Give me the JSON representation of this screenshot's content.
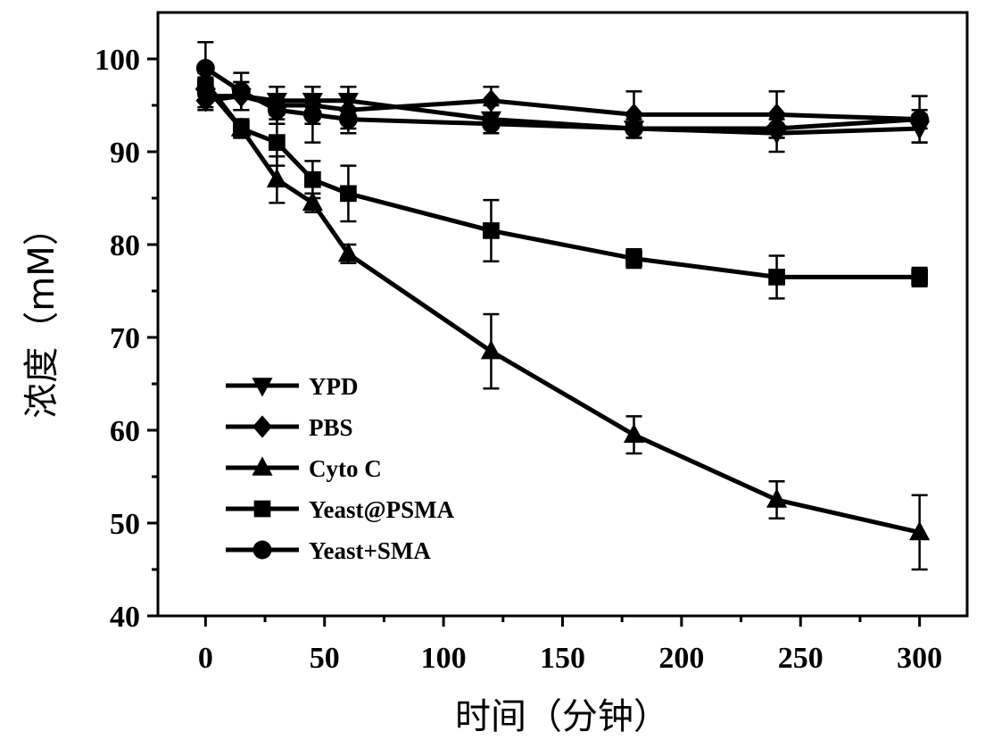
{
  "chart_data": {
    "type": "line",
    "title": "",
    "xlabel": "时间（分钟）",
    "ylabel": "浓度（mM）",
    "xlim": [
      -20,
      320
    ],
    "ylim": [
      40,
      105
    ],
    "xticks": [
      0,
      50,
      100,
      150,
      200,
      250,
      300
    ],
    "yticks": [
      40,
      50,
      60,
      70,
      80,
      90,
      100
    ],
    "grid": false,
    "legend_position": "bottom-left",
    "x": [
      0,
      15,
      30,
      45,
      60,
      120,
      180,
      240,
      300
    ],
    "series": [
      {
        "name": "YPD",
        "marker": "triangle-down",
        "values": [
          96.0,
          96.0,
          95.5,
          95.5,
          95.5,
          93.5,
          92.5,
          92.0,
          92.5
        ],
        "errors": [
          1.2,
          1.5,
          1.5,
          1.5,
          1.5,
          1.5,
          1.0,
          2.0,
          1.5
        ]
      },
      {
        "name": "PBS",
        "marker": "diamond",
        "values": [
          95.5,
          96.0,
          95.0,
          95.0,
          94.5,
          95.5,
          94.0,
          94.0,
          93.5
        ],
        "errors": [
          1.0,
          1.5,
          2.0,
          2.0,
          2.5,
          1.5,
          2.5,
          2.5,
          2.5
        ]
      },
      {
        "name": "Cyto C",
        "marker": "triangle-up",
        "values": [
          97.5,
          92.5,
          87.0,
          84.5,
          79.0,
          68.5,
          59.5,
          52.5,
          49.0
        ],
        "errors": [
          1.0,
          1.0,
          2.5,
          1.0,
          1.0,
          4.0,
          2.0,
          2.0,
          4.0
        ]
      },
      {
        "name": "Yeast@PSMA",
        "marker": "square",
        "values": [
          97.0,
          92.5,
          91.0,
          87.0,
          85.5,
          81.5,
          78.5,
          76.5,
          76.5
        ],
        "errors": [
          1.0,
          1.0,
          2.5,
          2.0,
          3.0,
          3.3,
          1.0,
          2.3,
          1.0
        ]
      },
      {
        "name": "Yeast+SMA",
        "marker": "circle",
        "values": [
          99.0,
          96.5,
          94.5,
          94.0,
          93.5,
          93.0,
          92.5,
          92.5,
          93.5
        ],
        "errors": [
          2.8,
          2.0,
          1.5,
          3.0,
          1.0,
          1.0,
          1.0,
          1.0,
          1.0
        ]
      }
    ]
  }
}
